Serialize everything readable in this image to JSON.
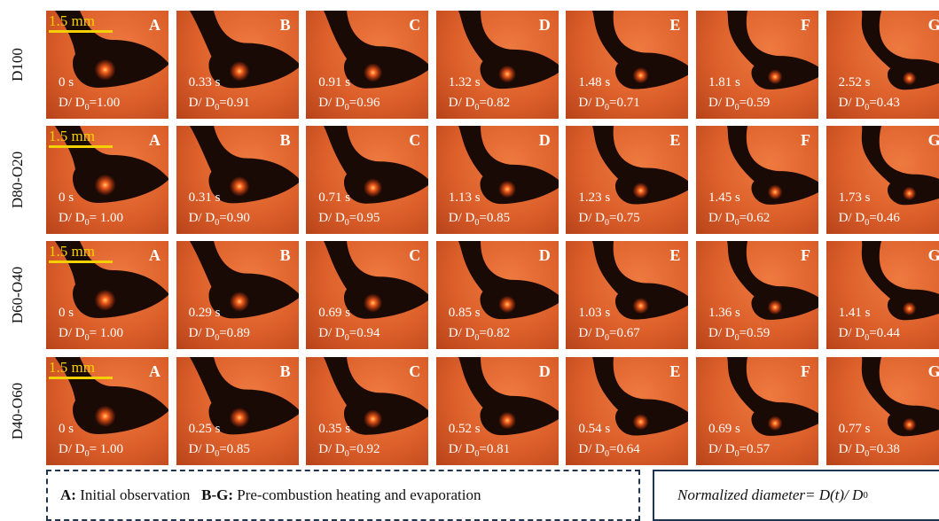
{
  "letters": [
    "A",
    "B",
    "C",
    "D",
    "E",
    "F",
    "G"
  ],
  "scale_bar": "1.5 mm",
  "ratio_label": {
    "text": "D/ D",
    "sub": "0"
  },
  "rows": [
    {
      "label": "D100",
      "cells": [
        {
          "time": "0 s",
          "ratio": "=1.00"
        },
        {
          "time": "0.33 s",
          "ratio": "=0.91"
        },
        {
          "time": "0.91 s",
          "ratio": "=0.96"
        },
        {
          "time": "1.32 s",
          "ratio": "=0.82"
        },
        {
          "time": "1.48 s",
          "ratio": "=0.71"
        },
        {
          "time": "1.81 s",
          "ratio": "=0.59"
        },
        {
          "time": "2.52 s",
          "ratio": "=0.43"
        }
      ]
    },
    {
      "label": "D80-O20",
      "cells": [
        {
          "time": "0 s",
          "ratio": "= 1.00"
        },
        {
          "time": "0.31 s",
          "ratio": "=0.90"
        },
        {
          "time": "0.71 s",
          "ratio": "=0.95"
        },
        {
          "time": "1.13 s",
          "ratio": "=0.85"
        },
        {
          "time": "1.23 s",
          "ratio": "=0.75"
        },
        {
          "time": "1.45 s",
          "ratio": "=0.62"
        },
        {
          "time": "1.73 s",
          "ratio": "=0.46"
        }
      ]
    },
    {
      "label": "D60-O40",
      "cells": [
        {
          "time": "0 s",
          "ratio": "= 1.00"
        },
        {
          "time": "0.29 s",
          "ratio": "=0.89"
        },
        {
          "time": "0.69 s",
          "ratio": "=0.94"
        },
        {
          "time": "0.85 s",
          "ratio": "=0.82"
        },
        {
          "time": "1.03 s",
          "ratio": "=0.67"
        },
        {
          "time": "1.36 s",
          "ratio": "=0.59"
        },
        {
          "time": "1.41 s",
          "ratio": "=0.44"
        }
      ]
    },
    {
      "label": "D40-O60",
      "cells": [
        {
          "time": "0 s",
          "ratio": "= 1.00"
        },
        {
          "time": "0.25 s",
          "ratio": "=0.85"
        },
        {
          "time": "0.35 s",
          "ratio": "=0.92"
        },
        {
          "time": "0.52 s",
          "ratio": "=0.81"
        },
        {
          "time": "0.54 s",
          "ratio": "=0.64"
        },
        {
          "time": "0.69 s",
          "ratio": "=0.57"
        },
        {
          "time": "0.77 s",
          "ratio": "=0.38"
        }
      ]
    }
  ],
  "legend": {
    "left": [
      {
        "key": "A:",
        "text": "Initial observation"
      },
      {
        "key": "B-G:",
        "text": "Pre-combustion heating and evaporation"
      }
    ],
    "right": {
      "text": "Normalized diameter= D(t)/ D",
      "sub": "0"
    }
  }
}
